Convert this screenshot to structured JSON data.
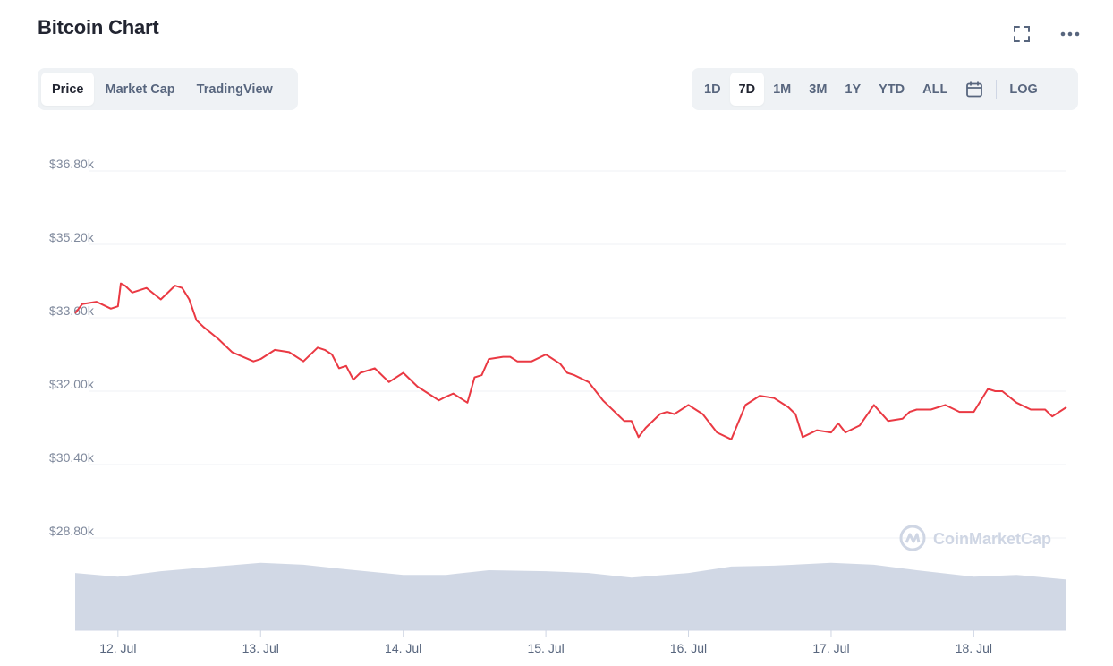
{
  "header": {
    "title": "Bitcoin Chart"
  },
  "icons": {
    "fullscreen": "fullscreen-icon",
    "more": "more-horizontal-icon",
    "calendar": "calendar-icon"
  },
  "tabs": [
    {
      "label": "Price",
      "active": true
    },
    {
      "label": "Market Cap",
      "active": false
    },
    {
      "label": "TradingView",
      "active": false
    }
  ],
  "ranges": [
    {
      "label": "1D",
      "active": false
    },
    {
      "label": "7D",
      "active": true
    },
    {
      "label": "1M",
      "active": false
    },
    {
      "label": "3M",
      "active": false
    },
    {
      "label": "1Y",
      "active": false
    },
    {
      "label": "YTD",
      "active": false
    },
    {
      "label": "ALL",
      "active": false
    }
  ],
  "log_label": "LOG",
  "watermark": "CoinMarketCap",
  "colors": {
    "line": "#ea3943",
    "volume": "#cfd6e4",
    "grid": "#eff2f5"
  },
  "chart_data": {
    "type": "line",
    "title": "",
    "xlabel": "",
    "ylabel": "",
    "y_tick_labels": [
      "$36.80k",
      "$35.20k",
      "$33.60k",
      "$32.00k",
      "$30.40k",
      "$28.80k"
    ],
    "y_ticks": [
      36800,
      35200,
      33600,
      32000,
      30400,
      28800
    ],
    "ylim": [
      28800,
      36800
    ],
    "x_tick_labels": [
      "12. Jul",
      "13. Jul",
      "14. Jul",
      "15. Jul",
      "16. Jul",
      "17. Jul",
      "18. Jul"
    ],
    "x_ticks": [
      12,
      13,
      14,
      15,
      16,
      17,
      18
    ],
    "xlim": [
      11.7,
      18.65
    ],
    "grid": true,
    "series": [
      {
        "x": [
          11.7,
          11.75,
          11.85,
          11.95,
          12.0,
          12.02,
          12.05,
          12.1,
          12.2,
          12.3,
          12.4,
          12.45,
          12.5,
          12.55,
          12.6,
          12.7,
          12.8,
          12.95,
          13.0,
          13.1,
          13.2,
          13.3,
          13.4,
          13.45,
          13.5,
          13.55,
          13.6,
          13.65,
          13.7,
          13.8,
          13.9,
          14.0,
          14.1,
          14.2,
          14.25,
          14.28,
          14.35,
          14.45,
          14.5,
          14.55,
          14.6,
          14.7,
          14.75,
          14.8,
          14.9,
          15.0,
          15.1,
          15.15,
          15.2,
          15.3,
          15.4,
          15.5,
          15.55,
          15.6,
          15.65,
          15.7,
          15.8,
          15.85,
          15.9,
          16.0,
          16.1,
          16.2,
          16.3,
          16.4,
          16.5,
          16.6,
          16.7,
          16.75,
          16.8,
          16.9,
          17.0,
          17.05,
          17.1,
          17.2,
          17.3,
          17.4,
          17.5,
          17.55,
          17.6,
          17.7,
          17.8,
          17.9,
          18.0,
          18.1,
          18.15,
          18.2,
          18.3,
          18.4,
          18.5,
          18.55,
          18.65
        ],
        "y": [
          33700,
          33900,
          33950,
          33800,
          33850,
          34350,
          34300,
          34150,
          34250,
          34000,
          34300,
          34250,
          34000,
          33550,
          33400,
          33150,
          32850,
          32650,
          32700,
          32900,
          32850,
          32650,
          32950,
          32900,
          32800,
          32500,
          32550,
          32250,
          32400,
          32500,
          32200,
          32400,
          32100,
          31900,
          31800,
          31850,
          31950,
          31750,
          32300,
          32350,
          32700,
          32750,
          32750,
          32650,
          32650,
          32800,
          32600,
          32400,
          32350,
          32200,
          31800,
          31500,
          31350,
          31350,
          31000,
          31200,
          31500,
          31550,
          31500,
          31700,
          31500,
          31100,
          30950,
          31700,
          31900,
          31850,
          31650,
          31500,
          31000,
          31150,
          31100,
          31300,
          31100,
          31250,
          31700,
          31350,
          31400,
          31550,
          31600,
          31600,
          31700,
          31550,
          31550,
          32050,
          32000,
          32000,
          31750,
          31600,
          31600,
          31450,
          31650
        ]
      }
    ],
    "volume_note_series": {
      "x": [
        11.7,
        12.0,
        12.3,
        12.6,
        13.0,
        13.3,
        13.6,
        14.0,
        14.3,
        14.6,
        15.0,
        15.3,
        15.6,
        16.0,
        16.3,
        16.6,
        17.0,
        17.3,
        17.6,
        18.0,
        18.3,
        18.65
      ],
      "y": [
        0.62,
        0.58,
        0.64,
        0.68,
        0.73,
        0.71,
        0.66,
        0.6,
        0.6,
        0.65,
        0.64,
        0.62,
        0.57,
        0.62,
        0.69,
        0.7,
        0.73,
        0.71,
        0.65,
        0.58,
        0.6,
        0.55
      ]
    }
  }
}
